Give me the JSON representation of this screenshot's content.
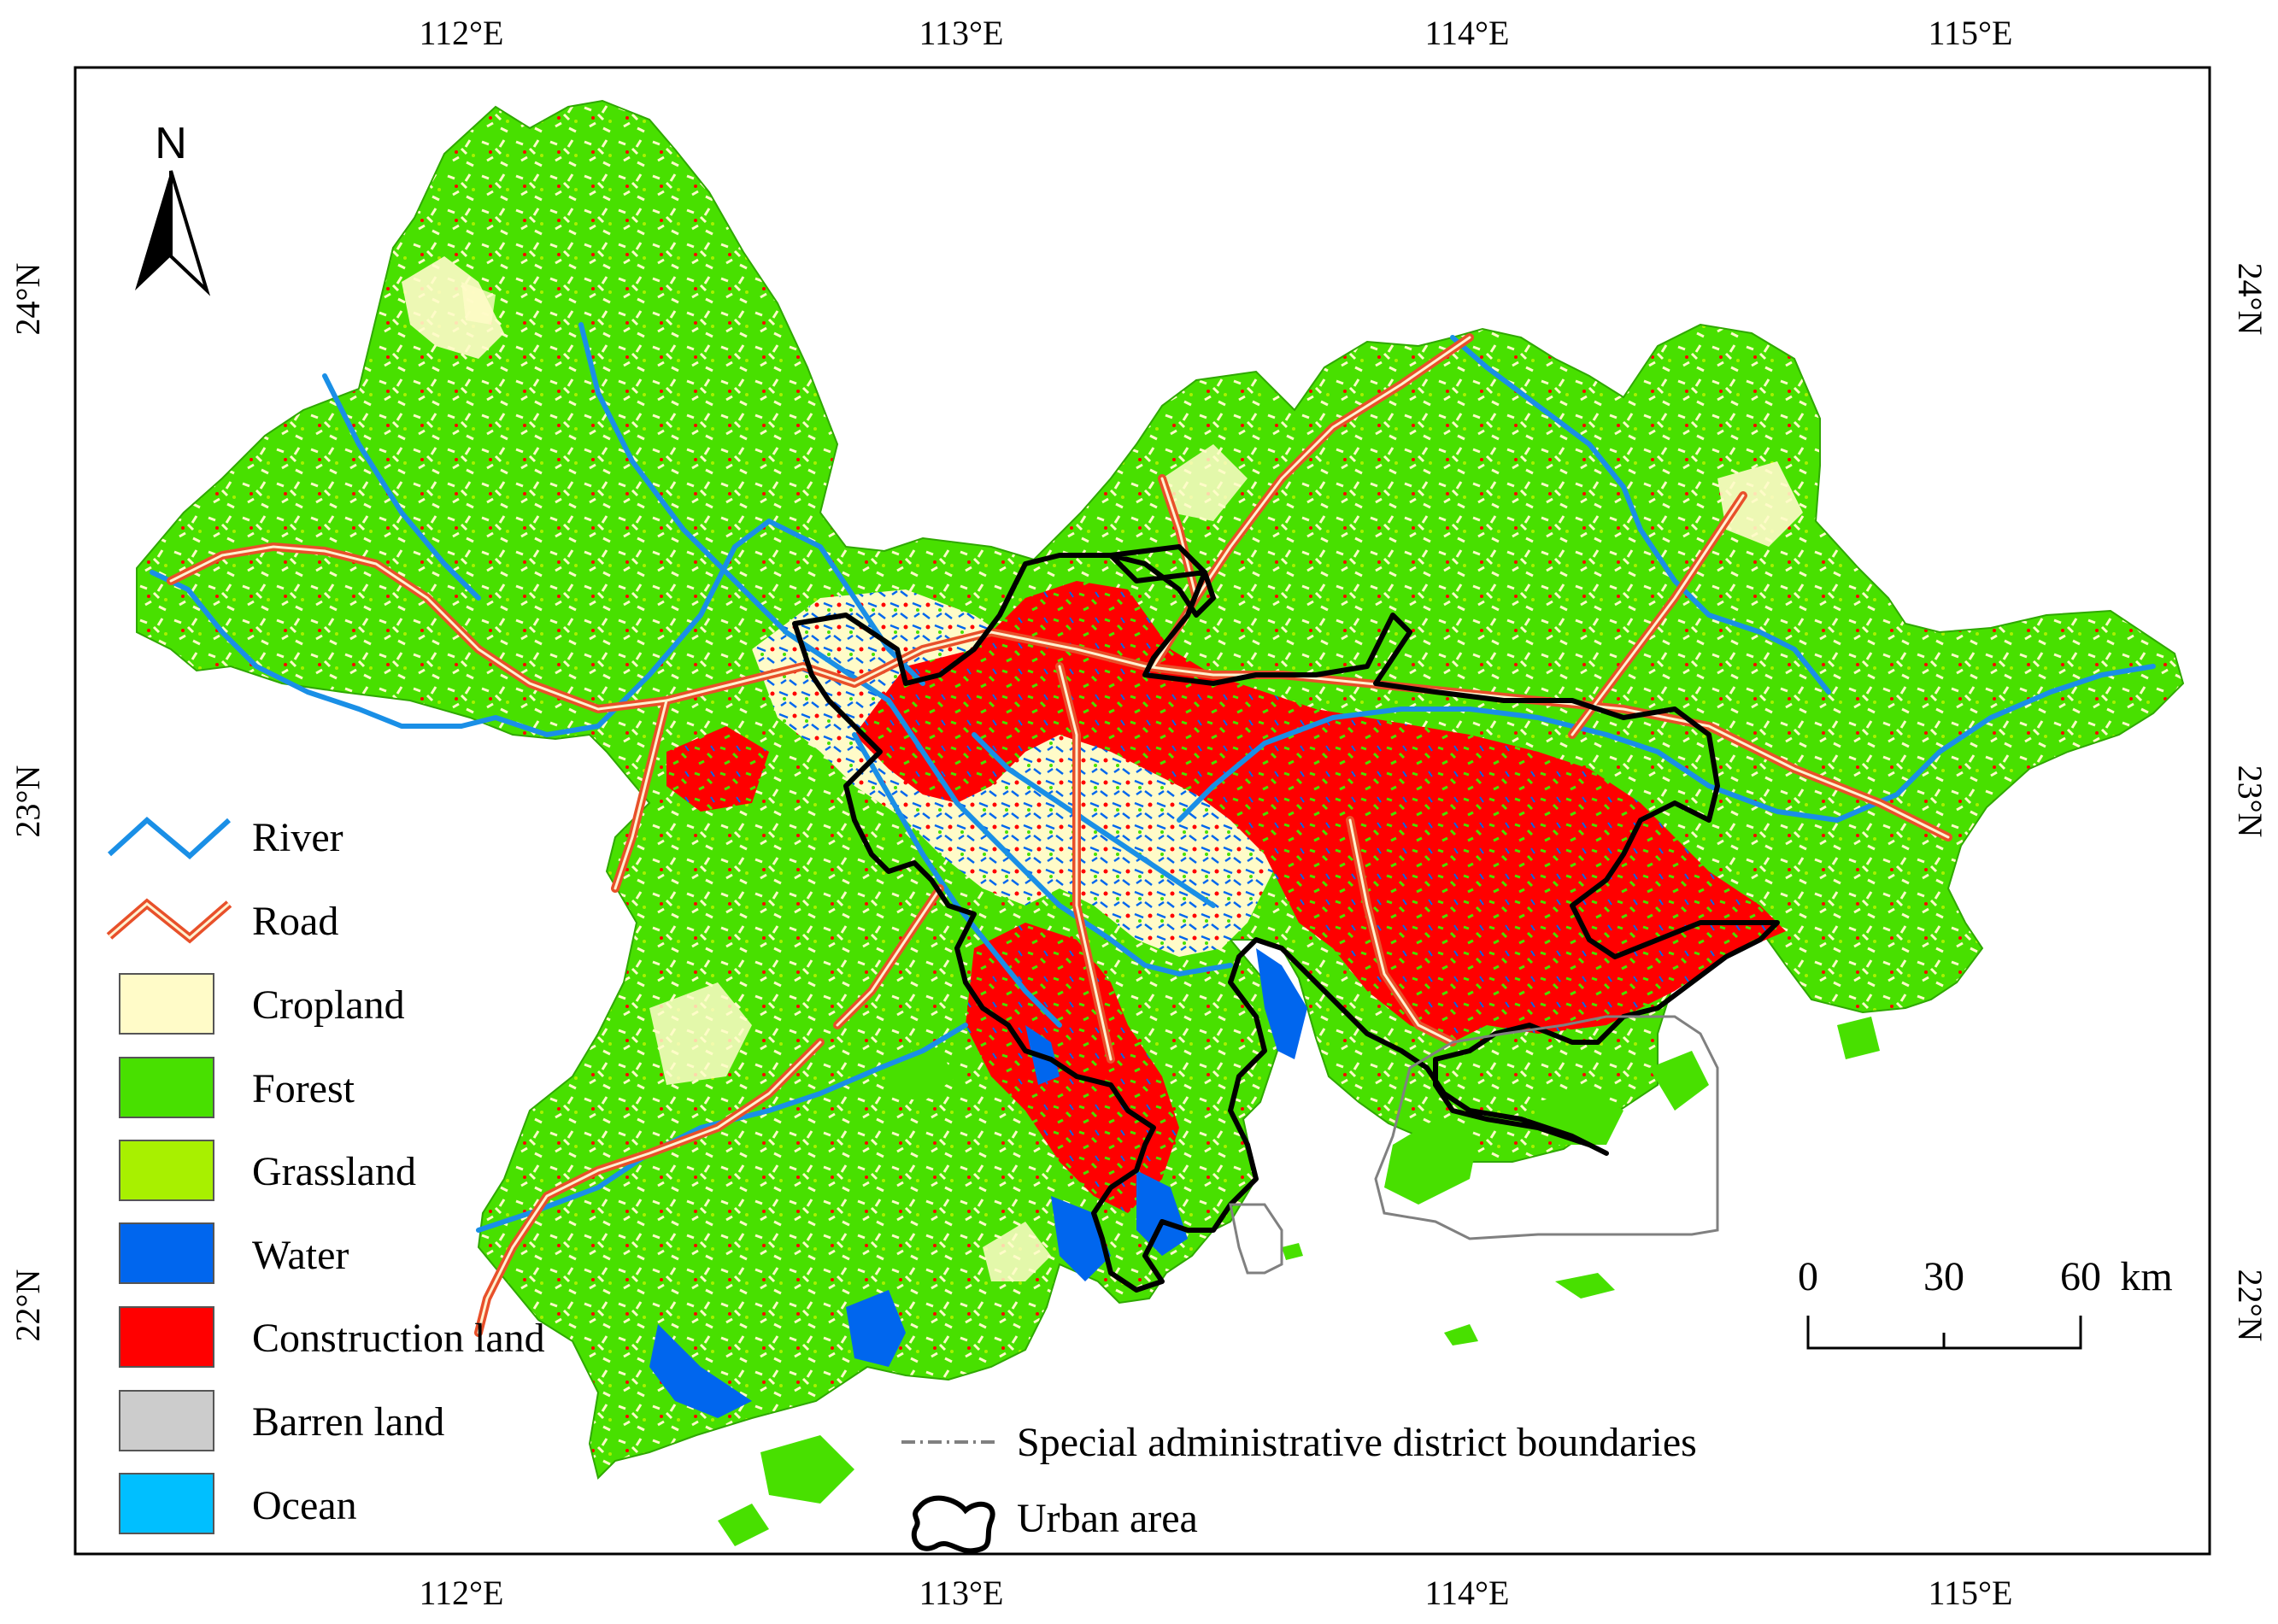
{
  "map": {
    "north_label": "N",
    "top_ticks": [
      "112°E",
      "113°E",
      "114°E",
      "115°E"
    ],
    "bottom_ticks": [
      "112°E",
      "113°E",
      "114°E",
      "115°E"
    ],
    "left_ticks": [
      "24°N",
      "23°N",
      "22°N"
    ],
    "right_ticks": [
      "24°N",
      "23°N",
      "22°N"
    ],
    "scale_bar": {
      "labels": [
        "0",
        "30",
        "60"
      ],
      "unit": "km"
    }
  },
  "legend": {
    "items": [
      {
        "label": "River",
        "symbol": "line",
        "color": "#1a8fe6"
      },
      {
        "label": "Road",
        "symbol": "double-line",
        "color": "#e8502a"
      },
      {
        "label": "Cropland",
        "symbol": "box",
        "color": "#fffbc8"
      },
      {
        "label": "Forest",
        "symbol": "box",
        "color": "#48e000"
      },
      {
        "label": "Grassland",
        "symbol": "box",
        "color": "#a8f000"
      },
      {
        "label": "Water",
        "symbol": "box",
        "color": "#0066ee"
      },
      {
        "label": "Construction land",
        "symbol": "box",
        "color": "#ff0000"
      },
      {
        "label": "Barren land",
        "symbol": "box",
        "color": "#cccccc"
      },
      {
        "label": "Ocean",
        "symbol": "box",
        "color": "#00bfff"
      }
    ],
    "extra_items": [
      {
        "label": "Special administrative district boundaries",
        "symbol": "dashed-line",
        "color": "#808080"
      },
      {
        "label": "Urban area",
        "symbol": "outline",
        "color": "#000000"
      }
    ]
  }
}
